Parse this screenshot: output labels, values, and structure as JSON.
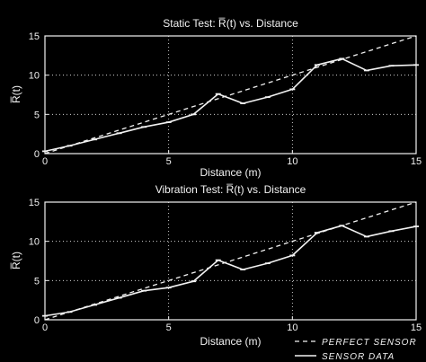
{
  "chart_data": [
    {
      "type": "line",
      "title": "Static Test: R̅(t) vs. Distance",
      "xlabel": "Distance (m)",
      "ylabel": "R̅(t)",
      "xlim": [
        0,
        15
      ],
      "ylim": [
        0,
        15
      ],
      "xticks": [
        0,
        5,
        10,
        15
      ],
      "yticks": [
        0,
        5,
        10,
        15
      ],
      "grid": "dotted",
      "series": [
        {
          "name": "PERFECT SENSOR",
          "style": "dashed",
          "x": [
            0,
            15
          ],
          "y": [
            0,
            15
          ]
        },
        {
          "name": "SENSOR DATA",
          "style": "solid",
          "x": [
            0,
            1,
            2,
            3,
            4,
            5,
            6,
            7,
            8,
            9,
            10,
            11,
            12,
            13,
            14,
            15
          ],
          "y": [
            0.3,
            1.0,
            1.8,
            2.6,
            3.4,
            4.0,
            5.0,
            7.6,
            6.4,
            7.2,
            8.2,
            11.3,
            12.1,
            10.6,
            11.2,
            11.3
          ]
        }
      ]
    },
    {
      "type": "line",
      "title": "Vibration Test: R̅(t) vs. Distance",
      "xlabel": "Distance (m)",
      "ylabel": "R̅(t)",
      "xlim": [
        0,
        15
      ],
      "ylim": [
        0,
        15
      ],
      "xticks": [
        0,
        5,
        10,
        15
      ],
      "yticks": [
        0,
        5,
        10,
        15
      ],
      "grid": "dotted",
      "legend": "bottom-right",
      "series": [
        {
          "name": "PERFECT SENSOR",
          "style": "dashed",
          "x": [
            0,
            15
          ],
          "y": [
            0,
            15
          ]
        },
        {
          "name": "SENSOR DATA",
          "style": "solid",
          "x": [
            0,
            1,
            2,
            3,
            4,
            5,
            6,
            7,
            8,
            9,
            10,
            11,
            12,
            13,
            14,
            15
          ],
          "y": [
            0.5,
            1.0,
            1.9,
            2.8,
            3.7,
            4.1,
            4.9,
            7.6,
            6.4,
            7.2,
            8.2,
            11.1,
            12.0,
            10.6,
            11.3,
            11.9
          ]
        }
      ]
    }
  ],
  "legend": {
    "perfect_label": "PERFECT SENSOR",
    "data_label": "SENSOR DATA"
  },
  "colors": {
    "background": "#000000",
    "ink": "#f2f2f2"
  }
}
